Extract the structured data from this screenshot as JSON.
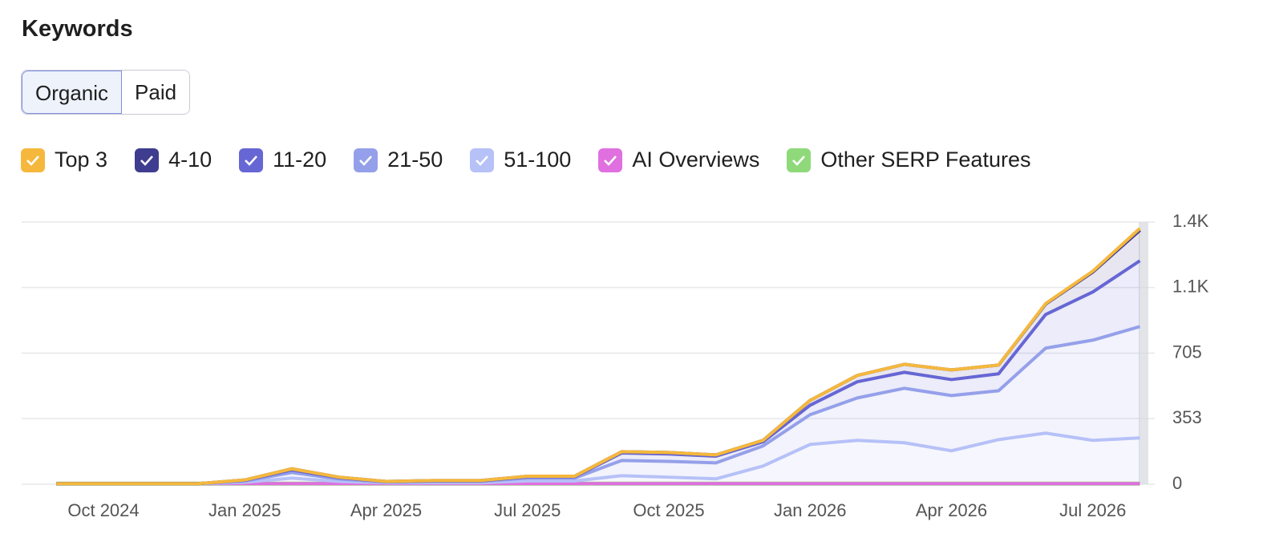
{
  "header": {
    "title": "Keywords"
  },
  "tabs": [
    "Organic",
    "Paid"
  ],
  "chart_data": {
    "type": "area",
    "stacked": true,
    "categories": [
      null,
      "Oct 2024",
      null,
      null,
      "Jan 2025",
      null,
      null,
      "Apr 2025",
      null,
      null,
      "Jul 2025",
      null,
      null,
      "Oct 2025",
      null,
      null,
      "Jan 2026",
      null,
      null,
      "Apr 2026",
      null,
      null,
      "Jul 2026",
      null
    ],
    "series": [
      {
        "name": "Top 3",
        "color": "#f5b83d",
        "values": [
          0,
          0,
          0,
          0,
          0,
          0,
          0,
          0,
          0,
          0,
          0,
          0,
          0,
          0,
          0,
          0,
          0,
          0,
          0,
          0,
          0,
          3,
          5,
          10
        ]
      },
      {
        "name": "4-10",
        "color": "#3f3d8f",
        "values": [
          0,
          0,
          0,
          0,
          2,
          6,
          3,
          1,
          2,
          2,
          3,
          3,
          7,
          8,
          7,
          8,
          26,
          34,
          43,
          52,
          47,
          56,
          107,
          164
        ]
      },
      {
        "name": "11-20",
        "color": "#6666d4",
        "values": [
          0,
          0,
          0,
          0,
          4,
          14,
          7,
          2,
          3,
          3,
          7,
          7,
          40,
          40,
          36,
          22,
          51,
          87,
          86,
          86,
          91,
          181,
          259,
          354
        ]
      },
      {
        "name": "21-50",
        "color": "#95a0ea",
        "values": [
          0,
          0,
          0,
          0,
          6,
          30,
          13,
          4,
          7,
          7,
          15,
          15,
          82,
          85,
          86,
          108,
          160,
          228,
          293,
          297,
          263,
          457,
          539,
          599
        ]
      },
      {
        "name": "51-100",
        "color": "#b6c1f8",
        "values": [
          0,
          0,
          0,
          0,
          8,
          30,
          12,
          5,
          5,
          5,
          15,
          15,
          43,
          35,
          26,
          95,
          211,
          233,
          220,
          177,
          237,
          272,
          233,
          246
        ]
      },
      {
        "name": "AI Overviews",
        "color": "#e06fe0",
        "values": [
          0,
          0,
          0,
          0,
          0,
          0,
          0,
          0,
          0,
          0,
          0,
          0,
          0,
          0,
          0,
          0,
          0,
          0,
          0,
          0,
          0,
          0,
          0,
          0
        ]
      },
      {
        "name": "Other SERP Features",
        "color": "#8fd97a",
        "values": [
          3,
          3,
          3,
          3,
          3,
          3,
          3,
          3,
          3,
          3,
          3,
          3,
          3,
          3,
          3,
          3,
          3,
          3,
          3,
          3,
          3,
          3,
          3,
          3
        ]
      }
    ],
    "ylim": [
      0,
      1410
    ],
    "yticks": [
      0,
      353,
      705,
      {
        "value": 1058,
        "label": "1.1K"
      },
      {
        "value": 1410,
        "label": "1.4K"
      }
    ],
    "grid": true
  }
}
